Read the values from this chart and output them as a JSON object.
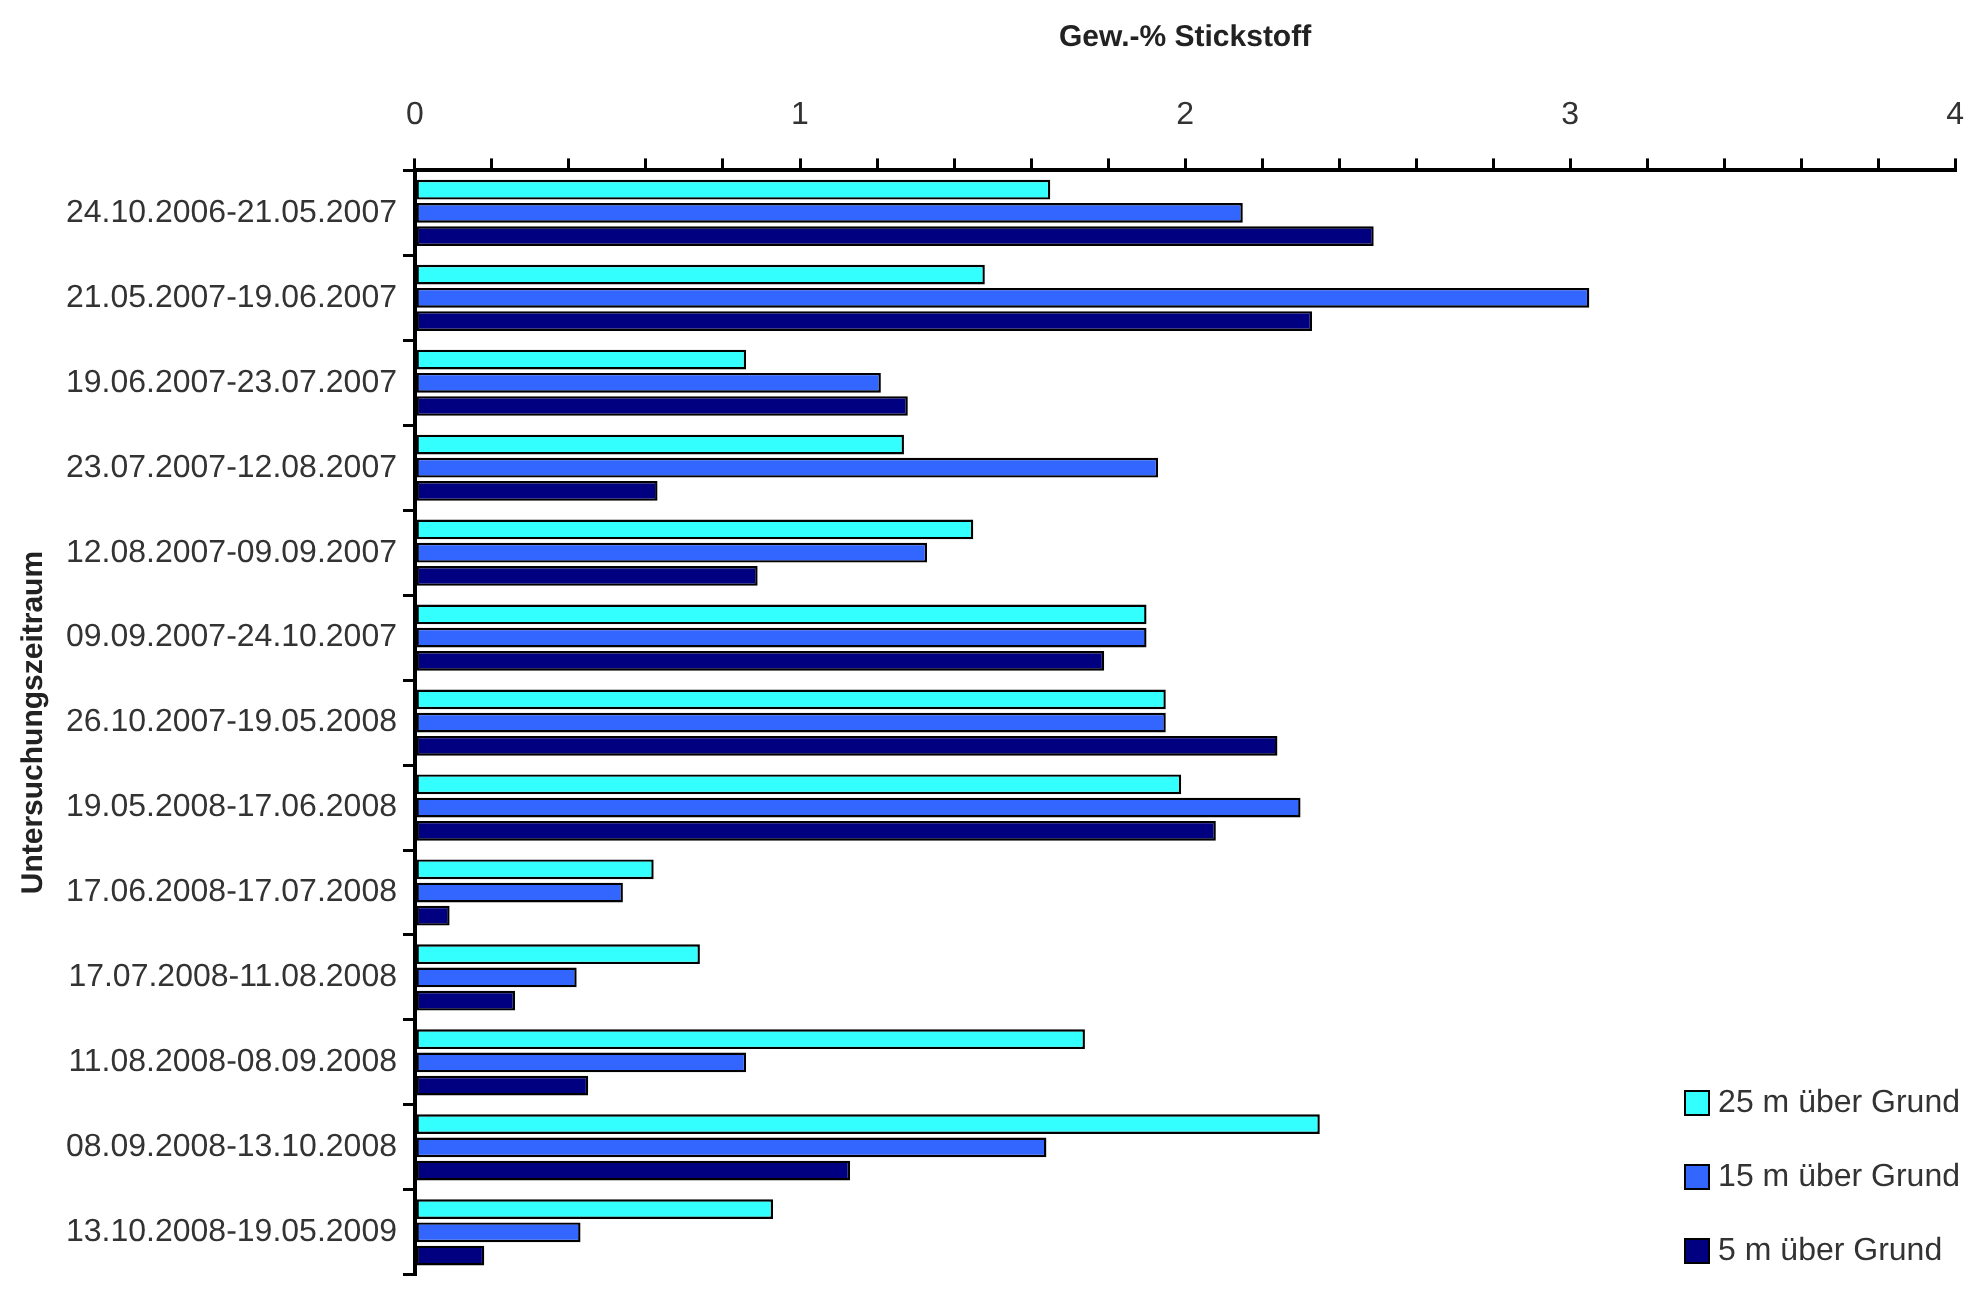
{
  "chart_data": {
    "type": "bar",
    "orientation": "horizontal",
    "xlabel": "Gew.-% Stickstoff",
    "ylabel": "Untersuchungszeitraum",
    "categories": [
      "24.10.2006-21.05.2007",
      "21.05.2007-19.06.2007",
      "19.06.2007-23.07.2007",
      "23.07.2007-12.08.2007",
      "12.08.2007-09.09.2007",
      "09.09.2007-24.10.2007",
      "26.10.2007-19.05.2008",
      "19.05.2008-17.06.2008",
      "17.06.2008-17.07.2008",
      "17.07.2008-11.08.2008",
      "11.08.2008-08.09.2008",
      "08.09.2008-13.10.2008",
      "13.10.2008-19.05.2009"
    ],
    "series": [
      {
        "name": "25 m über Grund",
        "color": "#33ffff",
        "values": [
          1.65,
          1.48,
          0.86,
          1.27,
          1.45,
          1.9,
          1.95,
          1.99,
          0.62,
          0.74,
          1.74,
          2.35,
          0.93
        ]
      },
      {
        "name": "15 m über Grund",
        "color": "#3366ff",
        "values": [
          2.15,
          3.05,
          1.21,
          1.93,
          1.33,
          1.9,
          1.95,
          2.3,
          0.54,
          0.42,
          0.86,
          1.64,
          0.43
        ]
      },
      {
        "name": "5 m über Grund",
        "color": "#000080",
        "values": [
          2.49,
          2.33,
          1.28,
          0.63,
          0.89,
          1.79,
          2.24,
          2.08,
          0.09,
          0.26,
          0.45,
          1.13,
          0.18
        ]
      }
    ],
    "xlim": [
      0,
      4
    ],
    "xticks": [
      0,
      {
        "value": 0.2,
        "label": null
      },
      {
        "value": 0.4,
        "label": null
      },
      {
        "value": 0.6,
        "label": null
      },
      {
        "value": 0.8,
        "label": null
      },
      1,
      {
        "value": 1.2,
        "label": null
      },
      {
        "value": 1.4,
        "label": null
      },
      {
        "value": 1.6,
        "label": null
      },
      {
        "value": 1.8,
        "label": null
      },
      2,
      {
        "value": 2.2,
        "label": null
      },
      {
        "value": 2.4,
        "label": null
      },
      {
        "value": 2.6,
        "label": null
      },
      {
        "value": 2.8,
        "label": null
      },
      3,
      {
        "value": 3.2,
        "label": null
      },
      {
        "value": 3.4,
        "label": null
      },
      {
        "value": 3.6,
        "label": null
      },
      {
        "value": 3.8,
        "label": null
      },
      4
    ],
    "grid": false,
    "legend": "bottom right"
  }
}
